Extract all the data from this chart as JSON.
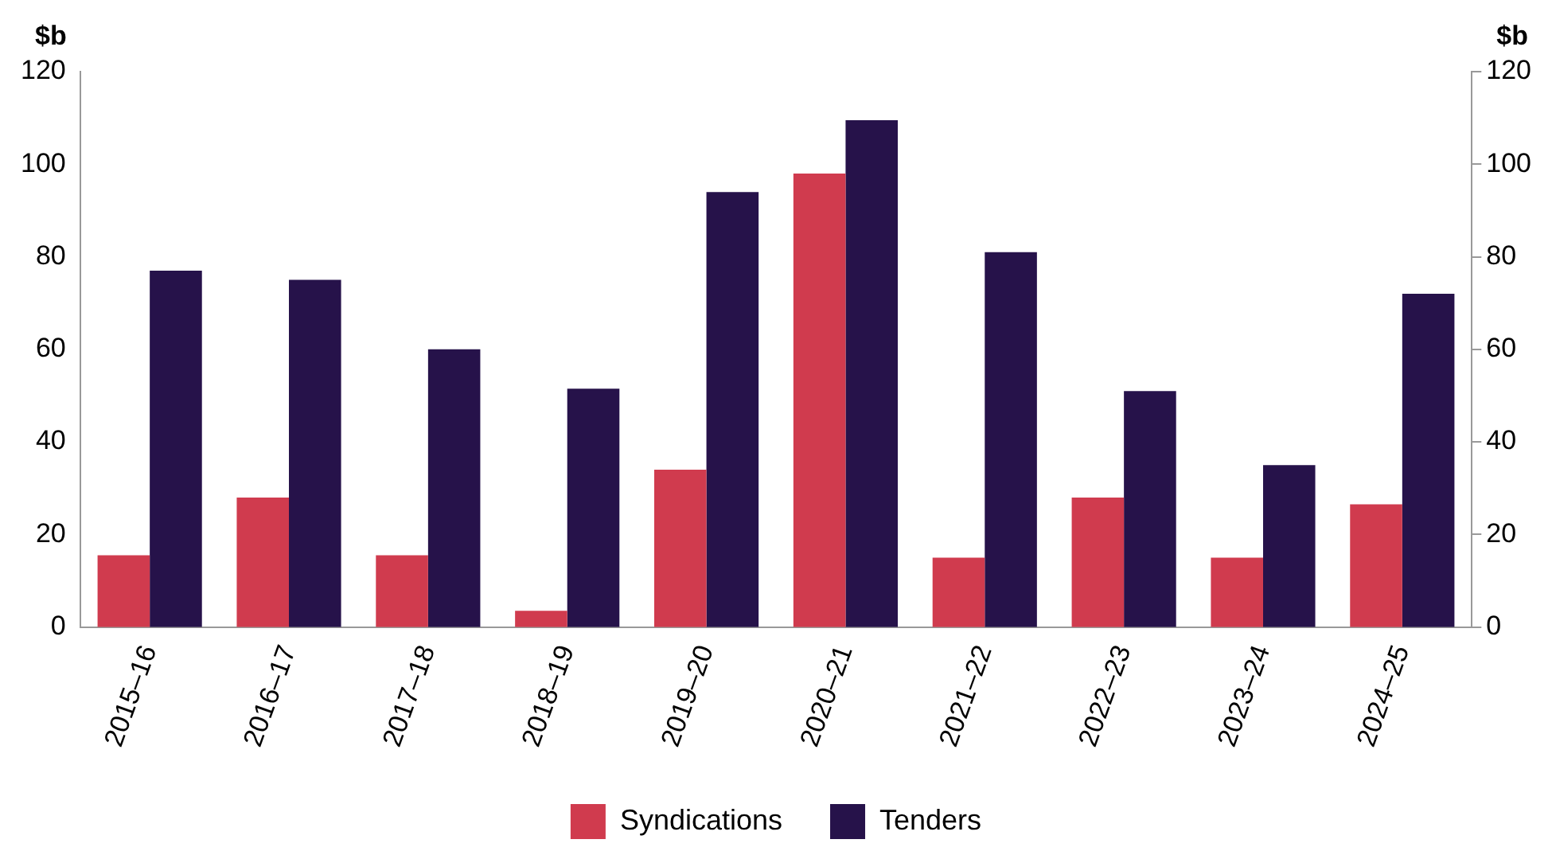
{
  "chart_data": {
    "type": "bar",
    "ylabel": "$b",
    "y2label": "$b",
    "categories": [
      "2015–16",
      "2016–17",
      "2017–18",
      "2018–19",
      "2019–20",
      "2020–21",
      "2021–22",
      "2022–23",
      "2023–24",
      "2024–25"
    ],
    "series": [
      {
        "name": "Syndications",
        "color": "#d03b4e",
        "values": [
          15.5,
          28,
          15.5,
          3.5,
          34,
          98,
          15,
          28,
          15,
          26.5
        ]
      },
      {
        "name": "Tenders",
        "color": "#26124a",
        "values": [
          77,
          75,
          60,
          51.5,
          94,
          109.5,
          81,
          51,
          35,
          72
        ]
      }
    ],
    "ylim": [
      0,
      120
    ],
    "yticks": [
      0,
      20,
      40,
      60,
      80,
      100,
      120
    ],
    "y2lim": [
      0,
      120
    ],
    "y2ticks": [
      0,
      20,
      40,
      60,
      80,
      100,
      120
    ],
    "grid": false,
    "legend": "bottom"
  }
}
